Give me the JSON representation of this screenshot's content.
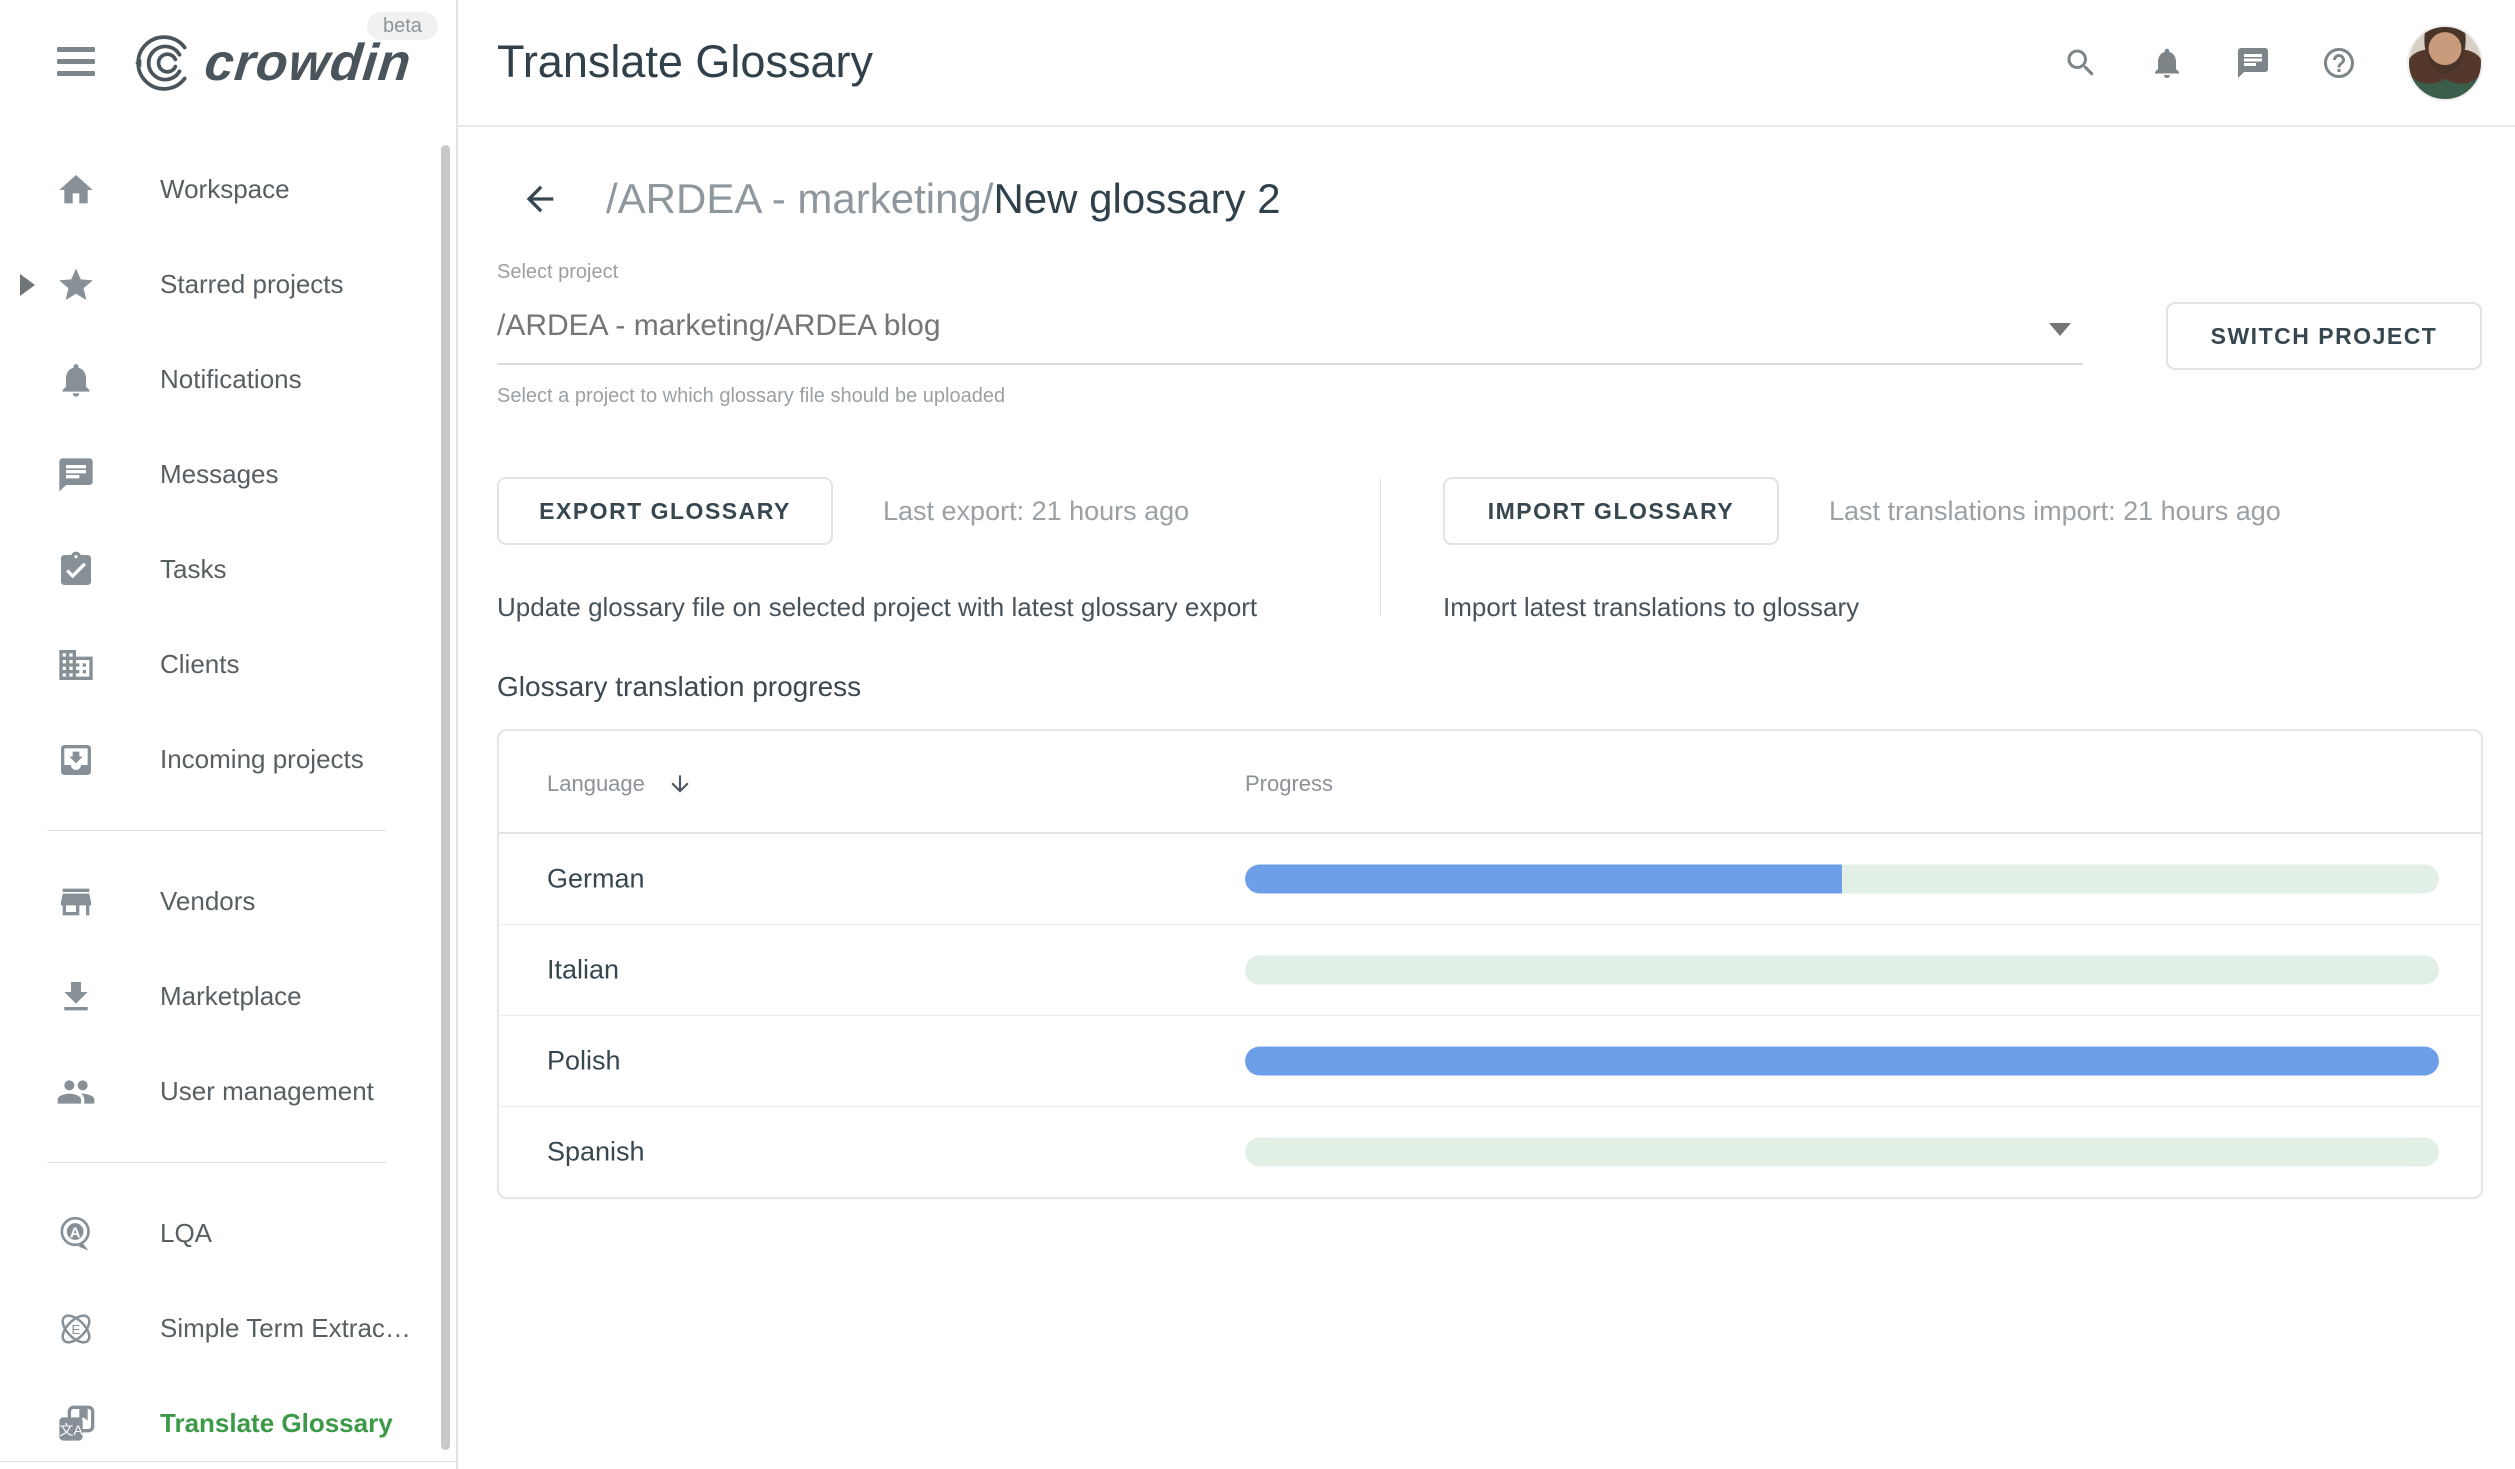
{
  "header": {
    "logo_text": "crowdin",
    "beta_label": "beta",
    "title": "Translate Glossary",
    "icons": [
      "menu-icon",
      "search-icon",
      "bell-icon",
      "chat-icon",
      "help-icon",
      "avatar"
    ]
  },
  "sidebar": {
    "groups": [
      {
        "items": [
          {
            "label": "Workspace",
            "icon": "home"
          },
          {
            "label": "Starred projects",
            "icon": "star",
            "caret": true
          },
          {
            "label": "Notifications",
            "icon": "bell"
          },
          {
            "label": "Messages",
            "icon": "chat"
          },
          {
            "label": "Tasks",
            "icon": "tasks"
          },
          {
            "label": "Clients",
            "icon": "clients"
          },
          {
            "label": "Incoming projects",
            "icon": "inbox"
          }
        ]
      },
      {
        "items": [
          {
            "label": "Vendors",
            "icon": "store"
          },
          {
            "label": "Marketplace",
            "icon": "download"
          },
          {
            "label": "User management",
            "icon": "people"
          }
        ]
      },
      {
        "items": [
          {
            "label": "LQA",
            "icon": "lqa"
          },
          {
            "label": "Simple Term Extrac…",
            "icon": "atom"
          },
          {
            "label": "Translate Glossary",
            "icon": "translate",
            "active": true
          }
        ]
      }
    ]
  },
  "breadcrumb": {
    "path_prefix": "/ARDEA - marketing/",
    "current": "New glossary 2"
  },
  "project_select": {
    "label": "Select project",
    "value": "/ARDEA - marketing/ARDEA blog",
    "helper": "Select a project to which glossary file should be uploaded",
    "switch_button": "SWITCH PROJECT"
  },
  "actions": {
    "export": {
      "button": "EXPORT GLOSSARY",
      "status": "Last export: 21 hours ago",
      "description": "Update glossary file on selected project with latest glossary export"
    },
    "import": {
      "button": "IMPORT GLOSSARY",
      "status": "Last translations import: 21 hours ago",
      "description": "Import latest translations to glossary"
    }
  },
  "progress_section": {
    "title": "Glossary translation progress",
    "columns": {
      "language": "Language",
      "progress": "Progress"
    },
    "chart_data": {
      "type": "bar",
      "categories": [
        "German",
        "Italian",
        "Polish",
        "Spanish"
      ],
      "values": [
        50,
        0,
        100,
        0
      ],
      "title": "Glossary translation progress",
      "xlabel": "Progress",
      "ylabel": "Language",
      "ylim": [
        0,
        100
      ]
    }
  },
  "colors": {
    "progress_fill": "#6c9fe8",
    "progress_track": "#e2efe6",
    "active_green": "#3c9a47"
  }
}
